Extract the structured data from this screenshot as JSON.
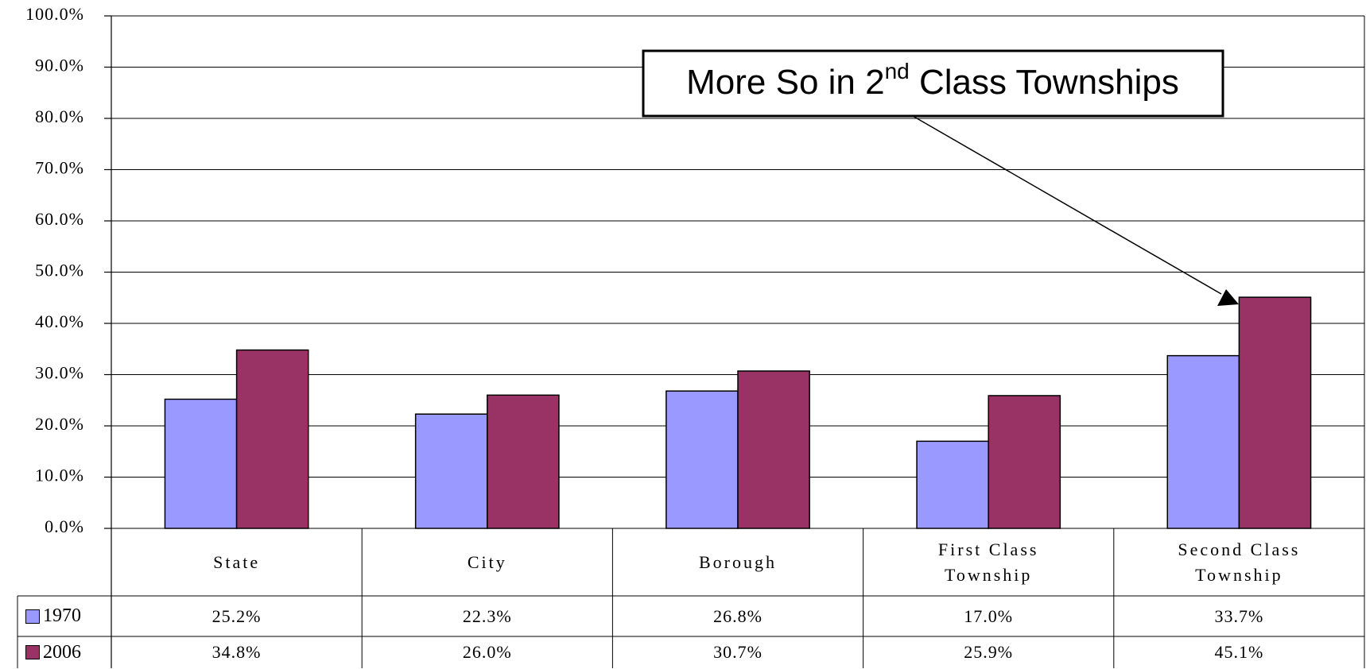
{
  "chart_data": {
    "type": "bar",
    "annotation": [
      "More So in 2",
      "nd",
      " Class Townships"
    ],
    "categories": [
      "State",
      "City",
      "Borough",
      "First Class Township",
      "Second Class Township"
    ],
    "series": [
      {
        "name": "1970",
        "color": "#9999ff",
        "values": [
          25.2,
          22.3,
          26.8,
          17.0,
          33.7
        ],
        "value_labels": [
          "25.2%",
          "22.3%",
          "26.8%",
          "17.0%",
          "33.7%"
        ]
      },
      {
        "name": "2006",
        "color": "#993366",
        "values": [
          34.8,
          26.0,
          30.7,
          25.9,
          45.1
        ],
        "value_labels": [
          "34.8%",
          "26.0%",
          "30.7%",
          "25.9%",
          "45.1%"
        ]
      }
    ],
    "ylim": [
      0,
      100
    ],
    "yticks": [
      {
        "value": 0,
        "label": "0.0%"
      },
      {
        "value": 10,
        "label": "10.0%"
      },
      {
        "value": 20,
        "label": "20.0%"
      },
      {
        "value": 30,
        "label": "30.0%"
      },
      {
        "value": 40,
        "label": "40.0%"
      },
      {
        "value": 50,
        "label": "50.0%"
      },
      {
        "value": 60,
        "label": "60.0%"
      },
      {
        "value": 70,
        "label": "70.0%"
      },
      {
        "value": 80,
        "label": "80.0%"
      },
      {
        "value": 90,
        "label": "90.0%"
      },
      {
        "value": 100,
        "label": "100.0%"
      }
    ],
    "grid": true
  }
}
